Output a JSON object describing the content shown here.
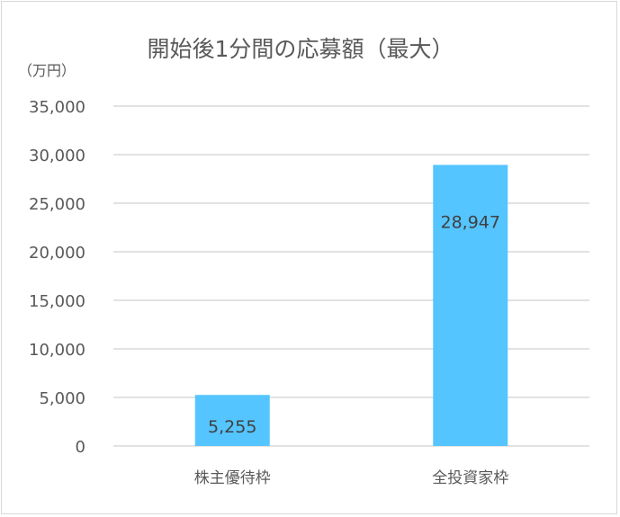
{
  "chart_data": {
    "type": "bar",
    "title": "開始後1分間の応募額（最大）",
    "unit_label": "（万円）",
    "categories": [
      "株主優待枠",
      "全投資家枠"
    ],
    "values": [
      5255,
      28947
    ],
    "data_labels": [
      "5,255",
      "28,947"
    ],
    "ylim": [
      0,
      35000
    ],
    "yticks": [
      0,
      5000,
      10000,
      15000,
      20000,
      25000,
      30000,
      35000
    ],
    "ytick_labels": [
      "0",
      "5,000",
      "10,000",
      "15,000",
      "20,000",
      "25,000",
      "30,000",
      "35,000"
    ],
    "grid": true,
    "bar_color": "#55c5ff",
    "grid_color": "#d9d9d9"
  }
}
